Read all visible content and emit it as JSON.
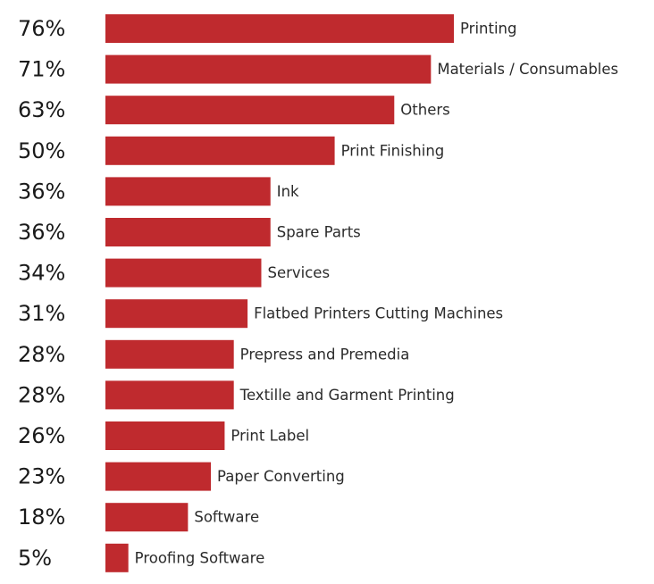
{
  "chart_data": {
    "type": "bar",
    "orientation": "horizontal",
    "categories": [
      "Printing",
      "Materials / Consumables",
      "Others",
      "Print Finishing",
      "Ink",
      "Spare Parts",
      "Services",
      "Flatbed Printers Cutting Machines",
      "Prepress and Premedia",
      "Textille and Garment Printing",
      "Print Label",
      "Paper Converting",
      "Software",
      "Proofing Software"
    ],
    "values": [
      76,
      71,
      63,
      50,
      36,
      36,
      34,
      31,
      28,
      28,
      26,
      23,
      18,
      5
    ],
    "value_labels": [
      "76%",
      "71%",
      "63%",
      "50%",
      "36%",
      "36%",
      "34%",
      "31%",
      "28%",
      "28%",
      "26%",
      "23%",
      "18%",
      "5%"
    ],
    "unit": "%",
    "bar_color": "#bf2a2e",
    "grid": false,
    "legend": "none"
  }
}
